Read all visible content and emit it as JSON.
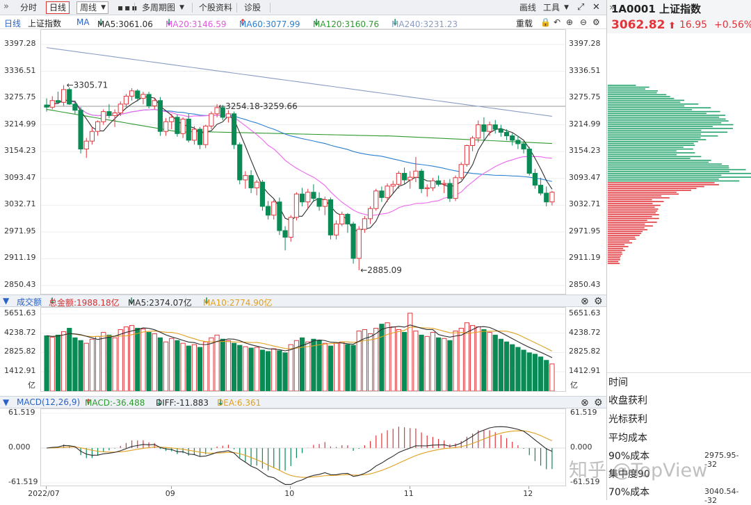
{
  "toolbar": {
    "items": [
      "分时",
      "日线",
      "周线",
      "多周期图",
      "个股资料",
      "诊股"
    ],
    "right": [
      "画线",
      "工具"
    ]
  },
  "ma_bar": {
    "period": "日线",
    "name": "上证指数",
    "ma": "MA",
    "ma5": "MA5:3061.06",
    "ma20": "MA20:3146.59",
    "ma60": "MA60:3077.99",
    "ma120": "MA120:3160.76",
    "ma240": "MA240:3231.23",
    "reset": "重载"
  },
  "quote": {
    "code_name": "1A0001  上证指数",
    "price": "3062.82",
    "change": "16.95",
    "pct": "+0.56%"
  },
  "vol_bar": {
    "title": "成交额",
    "total": "总金额:1988.18亿",
    "ma5": "MA5:2374.07亿",
    "ma10": "MA10:2774.90亿"
  },
  "macd_bar": {
    "title": "MACD(12,26,9)",
    "macd": "MACD:-36.488",
    "diff": "DIFF:-11.883",
    "dea": "DEA:6.361"
  },
  "right_panel": {
    "labels": [
      "时间",
      "收盘获利",
      "光标获利",
      "平均成本",
      "90%成本",
      "集中度90",
      "70%成本"
    ],
    "v90": "2975.95--32",
    "v70": "3040.54--32"
  },
  "watermark": "知乎 @TopView",
  "colors": {
    "up": "#e0353b",
    "down": "#0a8a55",
    "ma5": "#2b2b2b",
    "ma20": "#ee66ee",
    "ma60": "#2a7fd0",
    "ma120": "#2f9a2f",
    "ma240": "#8a9cc4"
  },
  "chart_data": {
    "type": "candlestick",
    "y_ticks": [
      "3397.28",
      "3336.51",
      "3275.75",
      "3214.99",
      "3154.23",
      "3093.47",
      "3032.71",
      "2971.95",
      "2911.19",
      "2850.43"
    ],
    "ylim": [
      2850.43,
      3397.28
    ],
    "x_labels": [
      "2022/07",
      "09",
      "10",
      "11",
      "12"
    ],
    "annotations": [
      "3305.71",
      "3254.18-3259.66",
      "2885.09"
    ],
    "ohlc": [
      [
        3260,
        3275,
        3245,
        3255
      ],
      [
        3255,
        3280,
        3250,
        3270
      ],
      [
        3270,
        3290,
        3262,
        3266
      ],
      [
        3266,
        3305,
        3258,
        3295
      ],
      [
        3295,
        3300,
        3260,
        3262
      ],
      [
        3262,
        3270,
        3240,
        3248
      ],
      [
        3248,
        3255,
        3150,
        3160
      ],
      [
        3160,
        3185,
        3140,
        3178
      ],
      [
        3178,
        3210,
        3170,
        3200
      ],
      [
        3200,
        3225,
        3190,
        3222
      ],
      [
        3222,
        3250,
        3215,
        3245
      ],
      [
        3245,
        3262,
        3230,
        3236
      ],
      [
        3236,
        3250,
        3210,
        3242
      ],
      [
        3242,
        3268,
        3235,
        3262
      ],
      [
        3262,
        3285,
        3255,
        3280
      ],
      [
        3280,
        3298,
        3270,
        3292
      ],
      [
        3292,
        3296,
        3268,
        3275
      ],
      [
        3275,
        3290,
        3262,
        3284
      ],
      [
        3284,
        3290,
        3252,
        3258
      ],
      [
        3258,
        3275,
        3250,
        3270
      ],
      [
        3270,
        3278,
        3190,
        3200
      ],
      [
        3200,
        3230,
        3190,
        3222
      ],
      [
        3222,
        3240,
        3205,
        3232
      ],
      [
        3232,
        3238,
        3188,
        3195
      ],
      [
        3195,
        3232,
        3185,
        3228
      ],
      [
        3228,
        3240,
        3175,
        3180
      ],
      [
        3180,
        3212,
        3170,
        3205
      ],
      [
        3205,
        3210,
        3160,
        3170
      ],
      [
        3170,
        3215,
        3162,
        3212
      ],
      [
        3212,
        3245,
        3205,
        3240
      ],
      [
        3240,
        3262,
        3232,
        3254
      ],
      [
        3254,
        3260,
        3225,
        3232
      ],
      [
        3232,
        3248,
        3220,
        3240
      ],
      [
        3240,
        3245,
        3160,
        3170
      ],
      [
        3170,
        3175,
        3080,
        3090
      ],
      [
        3090,
        3110,
        3070,
        3100
      ],
      [
        3100,
        3112,
        3060,
        3072
      ],
      [
        3072,
        3090,
        3055,
        3085
      ],
      [
        3085,
        3090,
        3020,
        3030
      ],
      [
        3030,
        3042,
        3000,
        3010
      ],
      [
        3010,
        3045,
        3000,
        3040
      ],
      [
        3040,
        3050,
        2965,
        2975
      ],
      [
        2975,
        2985,
        2930,
        2960
      ],
      [
        2960,
        3010,
        2950,
        3005
      ],
      [
        3005,
        3062,
        2998,
        3058
      ],
      [
        3058,
        3072,
        3030,
        3040
      ],
      [
        3040,
        3070,
        3025,
        3062
      ],
      [
        3062,
        3080,
        3040,
        3048
      ],
      [
        3048,
        3062,
        3020,
        3030
      ],
      [
        3030,
        3052,
        3010,
        3045
      ],
      [
        3045,
        3050,
        2955,
        2965
      ],
      [
        2965,
        2998,
        2955,
        2990
      ],
      [
        2990,
        3018,
        2985,
        3012
      ],
      [
        3012,
        3015,
        2970,
        2990
      ],
      [
        2990,
        2995,
        2900,
        2912
      ],
      [
        2912,
        2985,
        2885,
        2978
      ],
      [
        2978,
        3008,
        2970,
        3002
      ],
      [
        3002,
        3030,
        2990,
        3025
      ],
      [
        3025,
        3070,
        3020,
        3065
      ],
      [
        3065,
        3075,
        3040,
        3050
      ],
      [
        3050,
        3082,
        3040,
        3076
      ],
      [
        3076,
        3088,
        3060,
        3080
      ],
      [
        3080,
        3110,
        3070,
        3105
      ],
      [
        3105,
        3118,
        3080,
        3090
      ],
      [
        3090,
        3110,
        3070,
        3096
      ],
      [
        3096,
        3142,
        3085,
        3110
      ],
      [
        3110,
        3115,
        3060,
        3070
      ],
      [
        3070,
        3080,
        3052,
        3072
      ],
      [
        3072,
        3095,
        3065,
        3088
      ],
      [
        3088,
        3100,
        3075,
        3080
      ],
      [
        3080,
        3090,
        3060,
        3082
      ],
      [
        3082,
        3092,
        3040,
        3048
      ],
      [
        3048,
        3100,
        3042,
        3095
      ],
      [
        3095,
        3130,
        3090,
        3125
      ],
      [
        3125,
        3170,
        3120,
        3168
      ],
      [
        3168,
        3190,
        3155,
        3185
      ],
      [
        3185,
        3225,
        3175,
        3215
      ],
      [
        3215,
        3232,
        3180,
        3200
      ],
      [
        3200,
        3222,
        3190,
        3215
      ],
      [
        3215,
        3226,
        3195,
        3205
      ],
      [
        3205,
        3215,
        3188,
        3198
      ],
      [
        3198,
        3205,
        3180,
        3190
      ],
      [
        3190,
        3196,
        3168,
        3180
      ],
      [
        3180,
        3190,
        3160,
        3172
      ],
      [
        3172,
        3178,
        3150,
        3160
      ],
      [
        3160,
        3165,
        3100,
        3105
      ],
      [
        3105,
        3115,
        3070,
        3078
      ],
      [
        3078,
        3095,
        3055,
        3060
      ],
      [
        3060,
        3075,
        3030,
        3040
      ],
      [
        3040,
        3065,
        3032,
        3062
      ]
    ],
    "volume": [
      4050,
      3950,
      4100,
      4350,
      4600,
      3900,
      3700,
      3500,
      3800,
      4000,
      4300,
      4100,
      3900,
      4500,
      4700,
      4800,
      4600,
      4550,
      4300,
      4200,
      3900,
      3600,
      3850,
      3700,
      3500,
      3300,
      3400,
      3200,
      3600,
      3900,
      4100,
      3800,
      3700,
      3500,
      3350,
      3250,
      3150,
      3200,
      3000,
      2900,
      3100,
      2950,
      2800,
      3400,
      3700,
      3900,
      3600,
      3800,
      3700,
      3500,
      3300,
      3500,
      3600,
      3400,
      3350,
      4400,
      4500,
      4200,
      4600,
      4900,
      5000,
      4700,
      4500,
      4300,
      5700,
      4400,
      4100,
      4000,
      4300,
      3900,
      3850,
      3700,
      4400,
      4600,
      5000,
      4800,
      4700,
      4500,
      4300,
      4100,
      3800,
      3600,
      3400,
      3200,
      3000,
      2800,
      2700,
      2500,
      2250,
      1988
    ],
    "vol_ticks": [
      "5651.63",
      "4238.72",
      "2825.82",
      "1412.91"
    ],
    "vol_unit": "亿",
    "macd_ticks": [
      "61.519",
      "0.000",
      "-61.519"
    ]
  }
}
